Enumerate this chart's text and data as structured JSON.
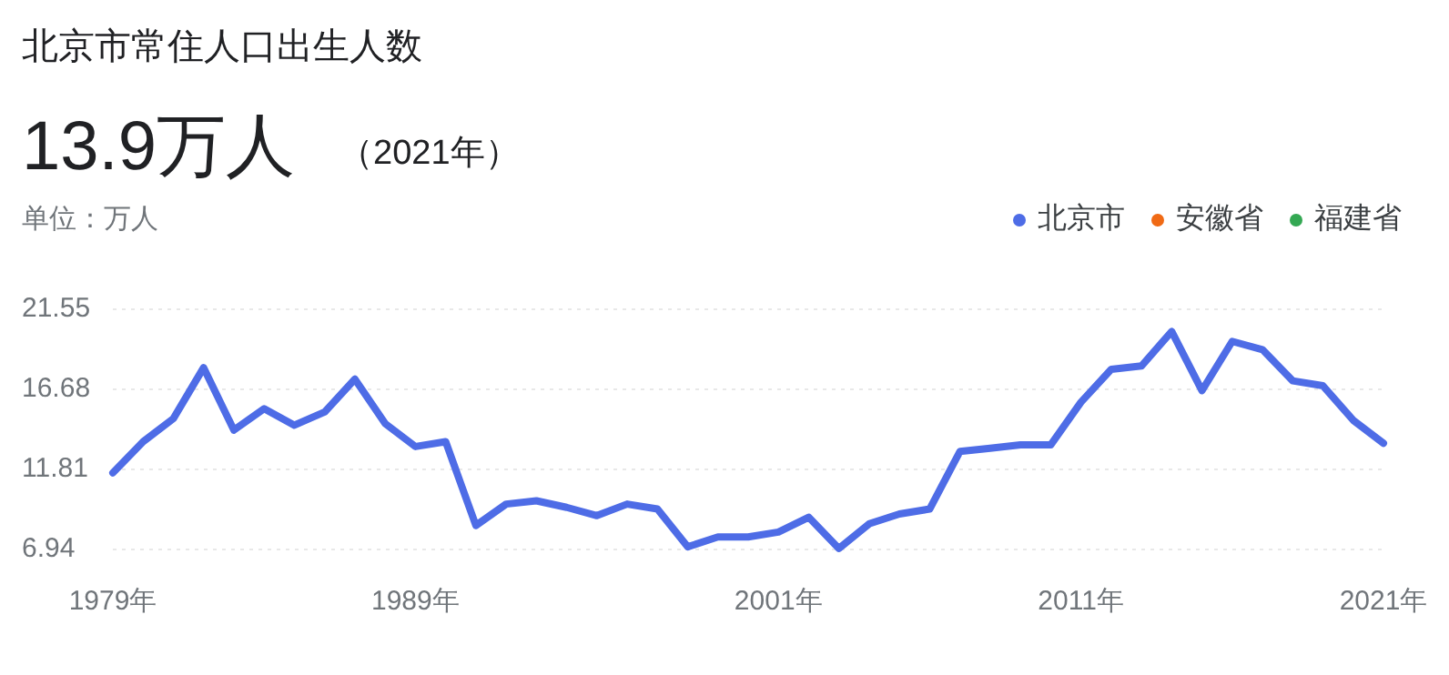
{
  "chart_data": {
    "type": "line",
    "title": "北京市常住人口出生人数",
    "subtitle": "13.9万人",
    "annotations": [
      "（2021年）",
      "单位：万人"
    ],
    "x": [
      1979,
      1980,
      1981,
      1982,
      1983,
      1984,
      1985,
      1986,
      1987,
      1988,
      1989,
      1990,
      1991,
      1992,
      1993,
      1994,
      1995,
      1996,
      1997,
      1998,
      1999,
      2000,
      2001,
      2002,
      2003,
      2004,
      2005,
      2006,
      2007,
      2008,
      2009,
      2010,
      2011,
      2012,
      2013,
      2014,
      2015,
      2016,
      2017,
      2018,
      2019,
      2020,
      2021
    ],
    "series": [
      {
        "name": "北京市",
        "color": "#4e6ce6",
        "values": [
          11.6,
          13.5,
          14.9,
          18.0,
          14.2,
          15.5,
          14.5,
          15.3,
          17.3,
          14.6,
          13.2,
          13.5,
          8.4,
          9.7,
          9.9,
          9.5,
          9.0,
          9.7,
          9.4,
          7.1,
          7.7,
          7.7,
          8.0,
          8.9,
          7.0,
          8.5,
          9.1,
          9.4,
          12.9,
          13.1,
          13.3,
          13.3,
          15.9,
          17.9,
          18.1,
          20.2,
          16.6,
          19.6,
          19.1,
          17.2,
          16.9,
          14.8,
          13.4
        ]
      },
      {
        "name": "安徽省",
        "color": "#f06a15",
        "values": [
          null,
          null,
          null,
          null,
          null,
          null,
          null,
          null,
          null,
          null,
          null,
          null,
          null,
          null,
          null,
          null,
          null,
          null,
          null,
          null,
          null,
          null,
          null,
          null,
          null,
          null,
          null,
          null,
          null,
          null,
          null,
          null,
          null,
          null,
          null,
          null,
          null,
          null,
          null,
          null,
          null,
          null,
          null
        ]
      },
      {
        "name": "福建省",
        "color": "#34a853",
        "values": [
          null,
          null,
          null,
          null,
          null,
          null,
          null,
          null,
          null,
          null,
          null,
          null,
          null,
          null,
          null,
          null,
          null,
          null,
          null,
          null,
          null,
          null,
          null,
          null,
          null,
          null,
          null,
          null,
          null,
          null,
          null,
          null,
          null,
          null,
          null,
          null,
          null,
          null,
          null,
          null,
          null,
          null,
          null
        ]
      }
    ],
    "xlim": [
      1979,
      2021
    ],
    "xticks": [
      {
        "value": 1979,
        "label": "1979年"
      },
      {
        "value": 1989,
        "label": "1989年"
      },
      {
        "value": 2001,
        "label": "2001年"
      },
      {
        "value": 2011,
        "label": "2011年"
      },
      {
        "value": 2021,
        "label": "2021年"
      }
    ],
    "ylim": [
      6.94,
      21.55
    ],
    "yticks": [
      6.94,
      11.81,
      16.68,
      21.55
    ],
    "grid": "y",
    "legend": "top right",
    "marker": "none",
    "line_style": "solid"
  }
}
